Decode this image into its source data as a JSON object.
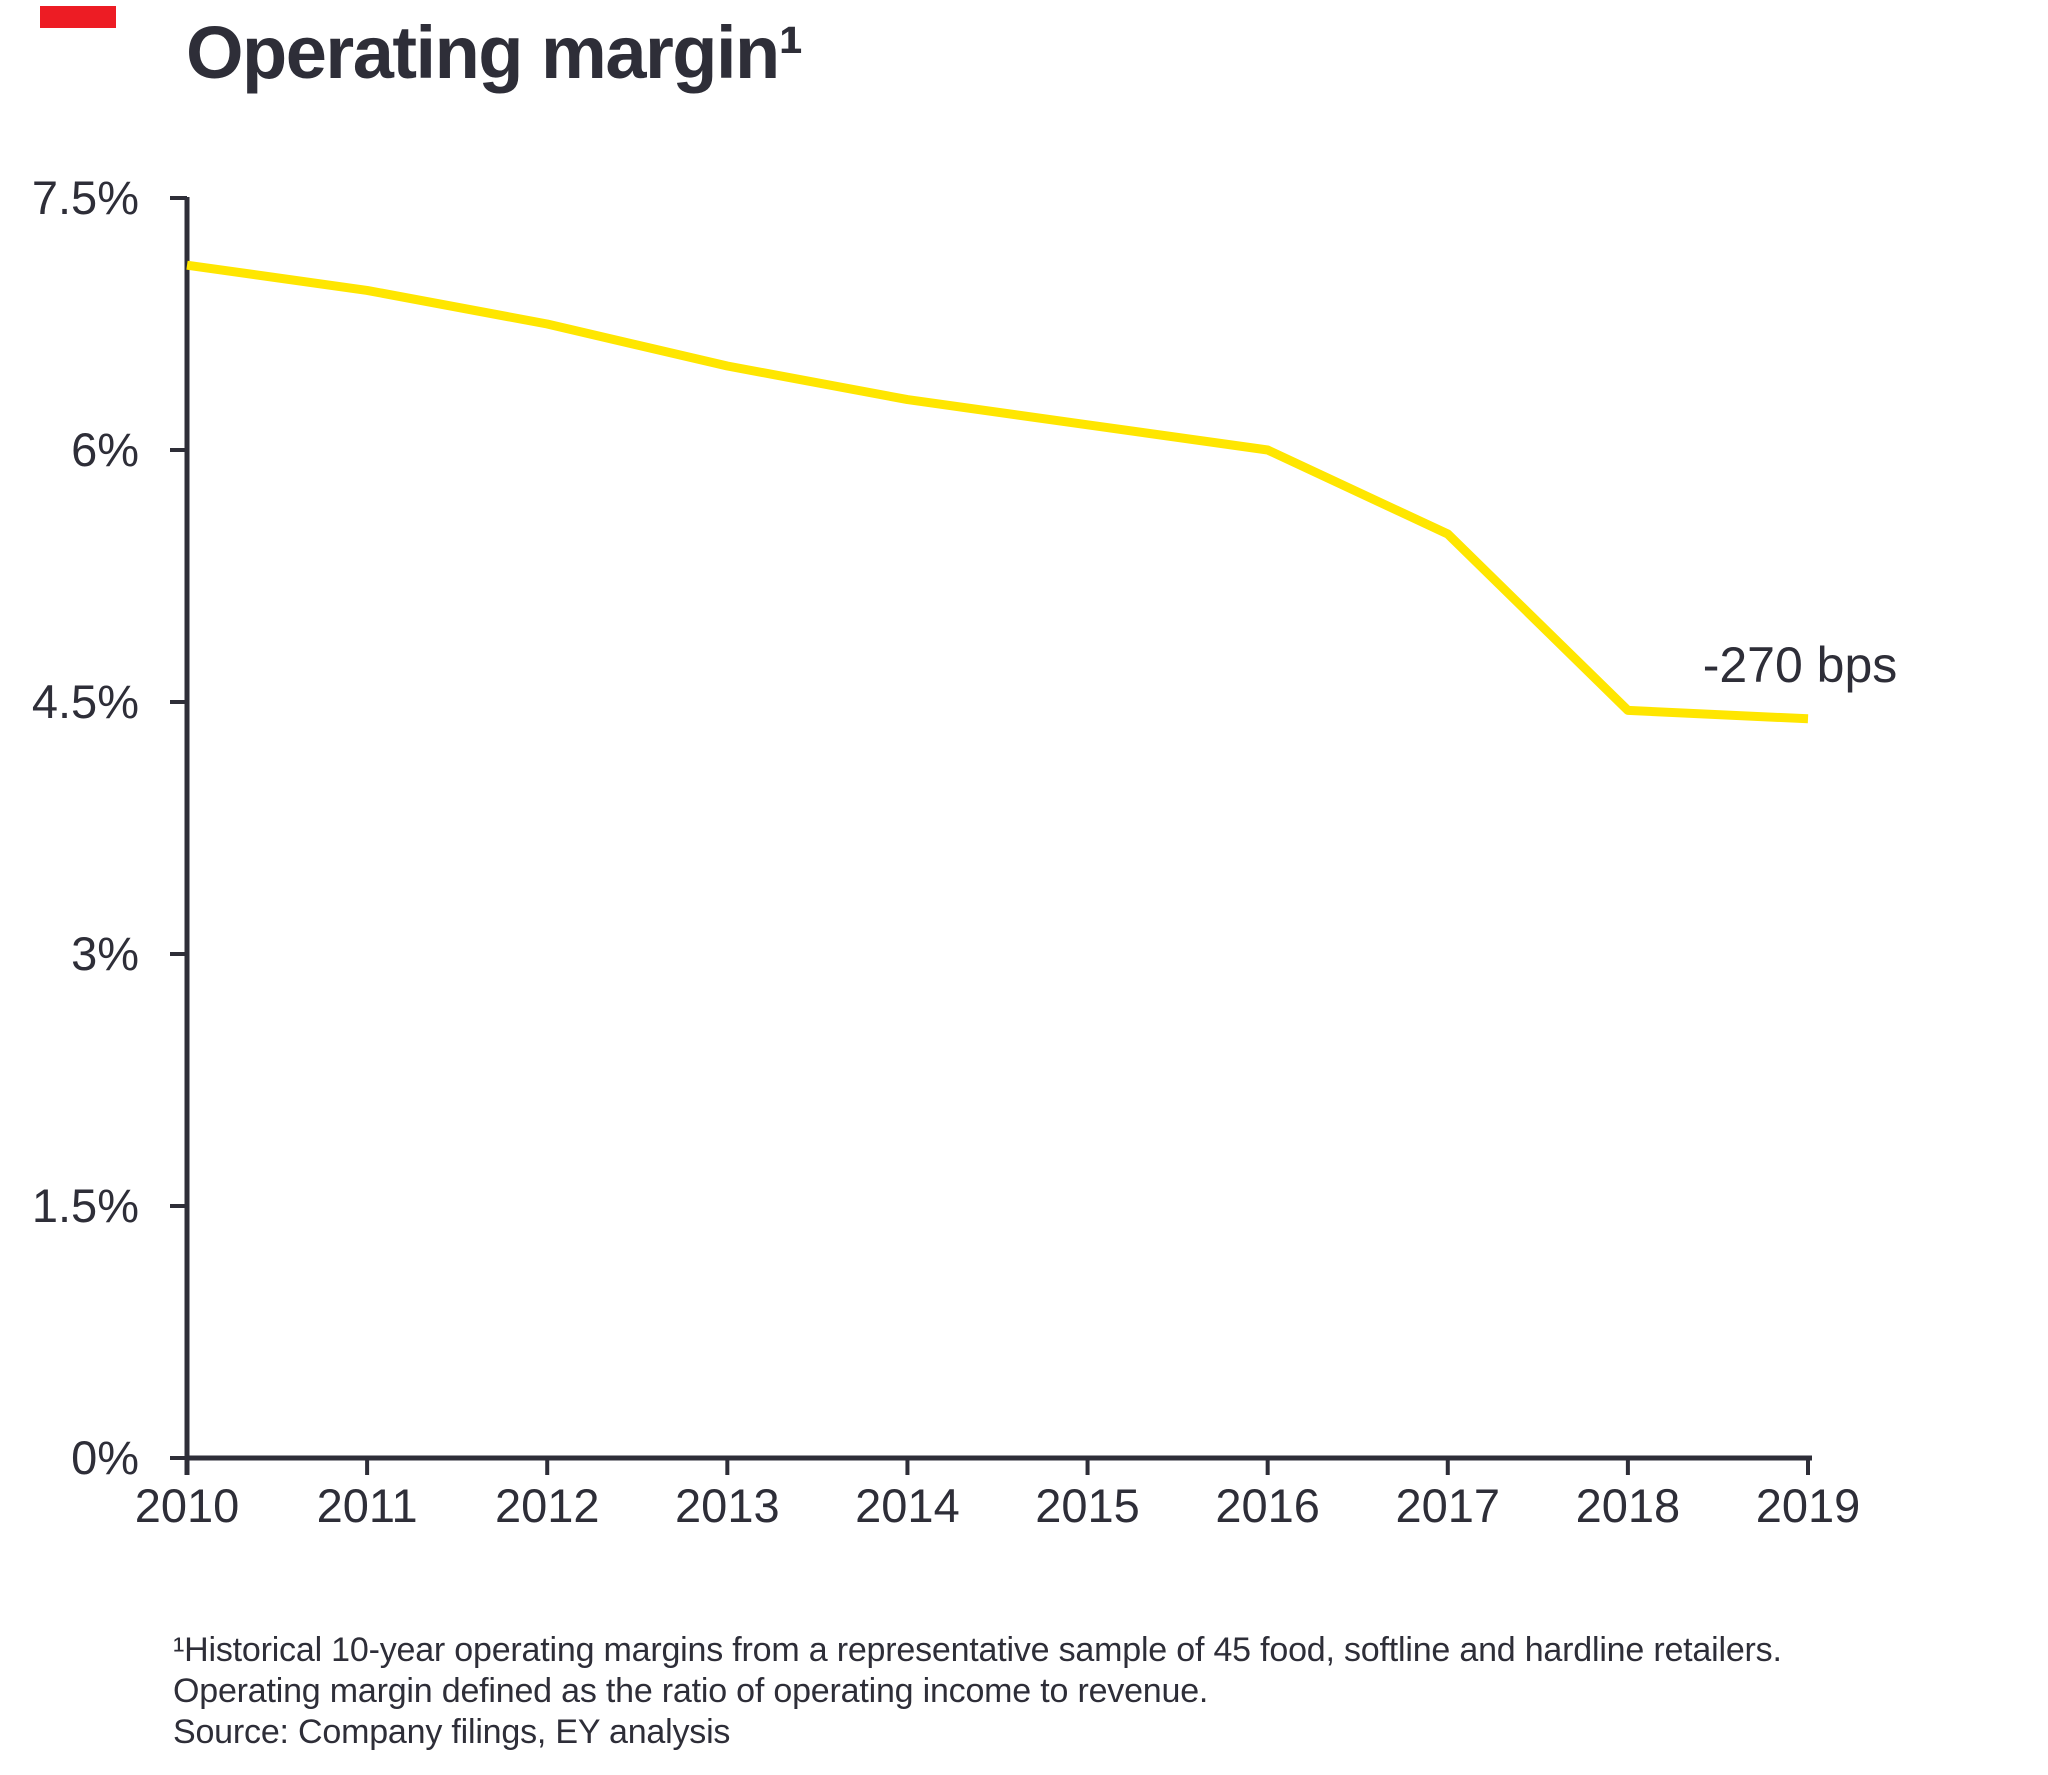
{
  "title": "Operating margin¹",
  "colors": {
    "line": "#FFE600",
    "axis": "#2E2E38",
    "text": "#2E2E38",
    "marker_red": "#ED1C24"
  },
  "chart_data": {
    "type": "line",
    "title": "Operating margin¹",
    "series_name": "Operating margin",
    "x": [
      2010,
      2011,
      2012,
      2013,
      2014,
      2015,
      2016,
      2017,
      2018,
      2019
    ],
    "values": [
      7.1,
      6.95,
      6.75,
      6.5,
      6.3,
      6.15,
      6.0,
      5.5,
      4.45,
      4.4
    ],
    "unit": "%",
    "ytick_values": [
      7.5,
      6,
      4.5,
      3,
      1.5,
      0
    ],
    "ytick_labels": [
      "7.5%",
      "6%",
      "4.5%",
      "3%",
      "1.5%",
      "0%"
    ],
    "ylim": [
      0,
      7.5
    ],
    "xlabel": "",
    "ylabel": "",
    "grid": false,
    "legend": "none",
    "line_color": "#FFE600",
    "annotation": "-270 bps"
  },
  "footnote": {
    "line1": "¹Historical 10-year operating margins from a representative sample of 45 food, softline and hardline retailers.",
    "line2": "Operating margin defined as the ratio of operating income to revenue.",
    "line3": "Source: Company filings, EY analysis"
  }
}
